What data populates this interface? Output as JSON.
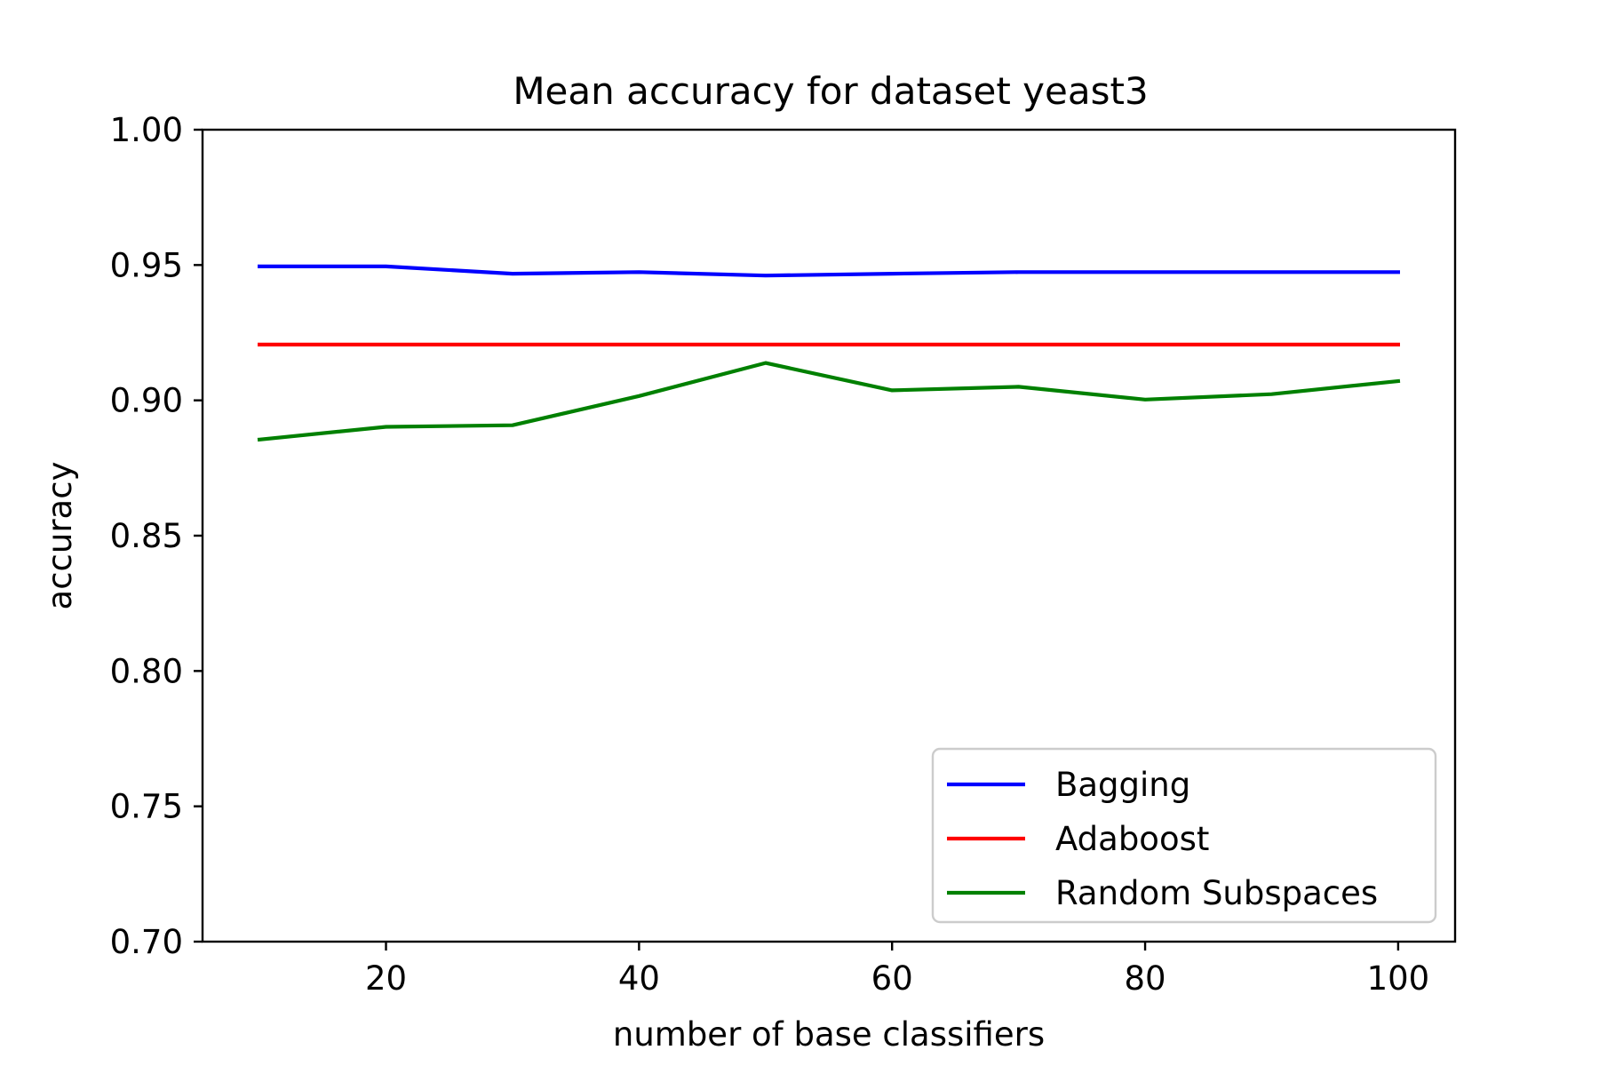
{
  "chart_data": {
    "type": "line",
    "title": "Mean accuracy for dataset yeast3",
    "xlabel": "number of base classifiers",
    "ylabel": "accuracy",
    "x": [
      10,
      20,
      30,
      40,
      50,
      60,
      70,
      80,
      90,
      100
    ],
    "xlim": [
      5.5,
      104.5
    ],
    "ylim": [
      0.7,
      1.0
    ],
    "xticks": [
      20,
      40,
      60,
      80,
      100
    ],
    "xtick_labels": [
      "20",
      "40",
      "60",
      "80",
      "100"
    ],
    "yticks": [
      0.7,
      0.75,
      0.8,
      0.85,
      0.9,
      0.95,
      1.0
    ],
    "ytick_labels": [
      "0.70",
      "0.75",
      "0.80",
      "0.85",
      "0.90",
      "0.95",
      "1.00"
    ],
    "grid": false,
    "legend_position": "lower-right",
    "series": [
      {
        "name": "Bagging",
        "color": "#0000ff",
        "values": [
          0.9495,
          0.9495,
          0.9468,
          0.9474,
          0.9461,
          0.9468,
          0.9474,
          0.9474,
          0.9474,
          0.9474
        ]
      },
      {
        "name": "Adaboost",
        "color": "#ff0000",
        "values": [
          0.9206,
          0.9206,
          0.9206,
          0.9206,
          0.9206,
          0.9206,
          0.9206,
          0.9206,
          0.9206,
          0.9206
        ]
      },
      {
        "name": "Random Subspaces",
        "color": "#008000",
        "values": [
          0.8855,
          0.8902,
          0.8908,
          0.9016,
          0.9138,
          0.9037,
          0.905,
          0.9003,
          0.9023,
          0.9071
        ]
      }
    ]
  }
}
